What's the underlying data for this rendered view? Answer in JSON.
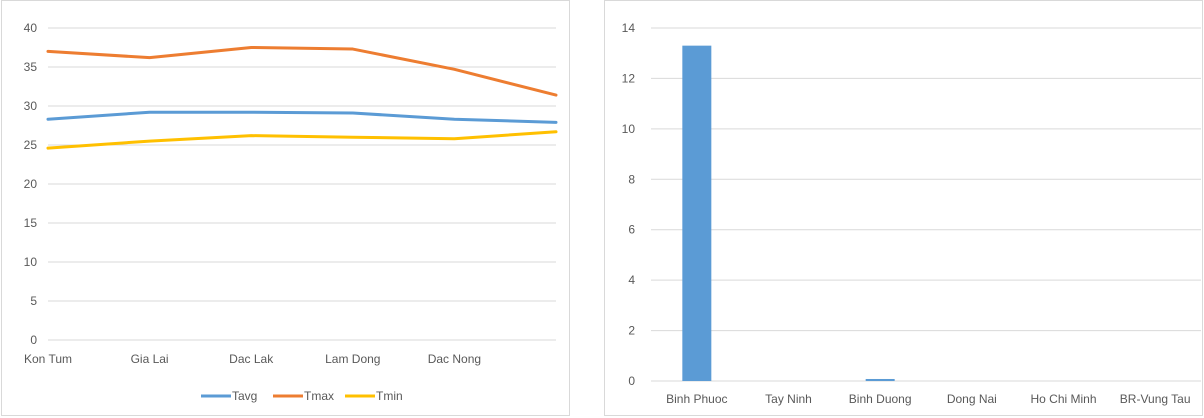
{
  "chart_data": [
    {
      "type": "line",
      "categories": [
        "Kon Tum",
        "Gia Lai",
        "Dac Lak",
        "Lam Dong",
        "Dac Nong",
        ""
      ],
      "ylim": [
        0,
        40
      ],
      "yticks": [
        0,
        5,
        10,
        15,
        20,
        25,
        30,
        35,
        40
      ],
      "grid": "horizontal",
      "legend_position": "bottom",
      "series": [
        {
          "name": "Tavg",
          "color": "#5b9bd5",
          "values": [
            28.3,
            29.2,
            29.2,
            29.1,
            28.3,
            27.9
          ]
        },
        {
          "name": "Tmax",
          "color": "#ed7d31",
          "values": [
            37.0,
            36.2,
            37.5,
            37.3,
            34.7,
            31.4
          ]
        },
        {
          "name": "Tmin",
          "color": "#ffc000",
          "values": [
            24.6,
            25.5,
            26.2,
            26.0,
            25.8,
            26.7
          ]
        }
      ]
    },
    {
      "type": "bar",
      "categories": [
        "Binh Phuoc",
        "Tay Ninh",
        "Binh Duong",
        "Dong Nai",
        "Ho Chi Minh",
        "BR-Vung Tau"
      ],
      "values": [
        13.3,
        0,
        0.08,
        0,
        0,
        0
      ],
      "ylim": [
        0,
        14
      ],
      "yticks": [
        0,
        2,
        4,
        6,
        8,
        10,
        12,
        14
      ],
      "grid": "horizontal",
      "color": "#5b9bd5"
    }
  ]
}
